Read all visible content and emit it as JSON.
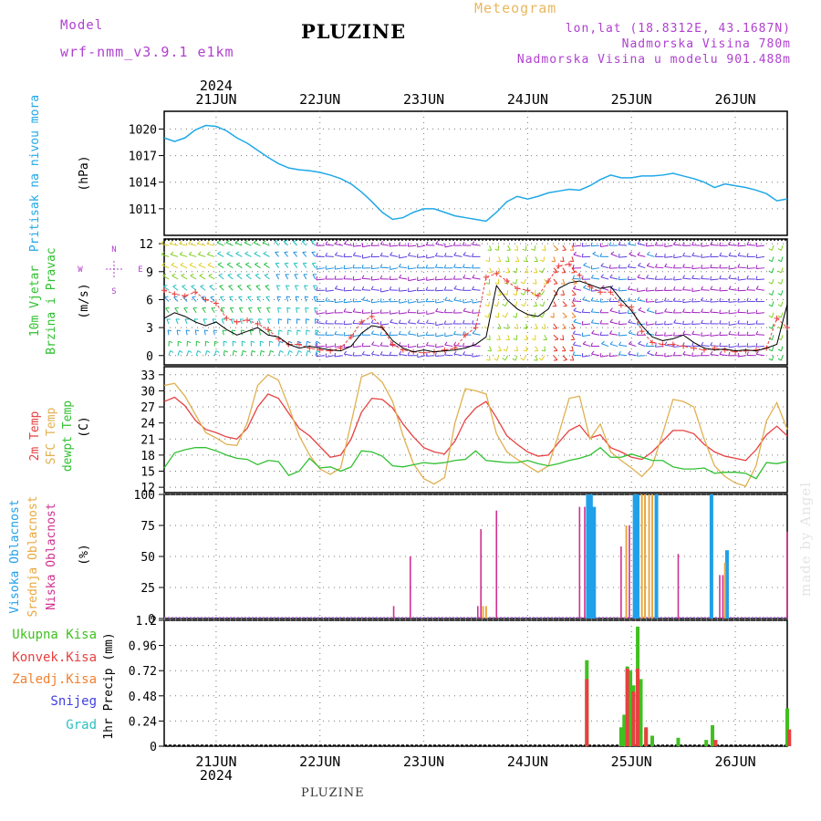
{
  "header": {
    "model_label": "Model",
    "model_name": "wrf-nmm_v3.9.1 e1km",
    "title": "PLUZINE",
    "meteogram_label": "Meteogram",
    "lonlat": "lon,lat (18.8312E, 43.1687N)",
    "altitude": "Nadmorska Visina 780m",
    "model_altitude": "Nadmorska Visina u modelu 901.488m",
    "footer": "PLUZINE",
    "credit": "made by Angel"
  },
  "colors": {
    "pressure": "#20a8e8",
    "temp": "#e84040",
    "sfc_temp": "#e0b050",
    "dewpt": "#30c030",
    "high_cloud": "#20a0e8",
    "mid_cloud": "#e8a840",
    "low_cloud": "#d03090",
    "total_precip": "#40c020",
    "conv_precip": "#e84040",
    "frozen_precip": "#f08030",
    "snow": "#4040e0",
    "hail": "#30c0c0"
  },
  "chart_data": [
    {
      "type": "line",
      "panel": "pressure",
      "ylabel_left": "Pritisak na nivou mora",
      "ylabel_unit": "(hPa)",
      "x_labels": [
        "21JUN",
        "22JUN",
        "23JUN",
        "24JUN",
        "25JUN",
        "26JUN"
      ],
      "year_label": "2024",
      "yticks": [
        "1011",
        "1014",
        "1017",
        "1020"
      ],
      "ylim": [
        1008,
        1022
      ],
      "x": [
        20.5,
        20.6,
        20.7,
        20.8,
        20.9,
        21.0,
        21.1,
        21.2,
        21.3,
        21.4,
        21.5,
        21.6,
        21.7,
        21.8,
        21.9,
        22.0,
        22.1,
        22.2,
        22.3,
        22.4,
        22.5,
        22.6,
        22.7,
        22.8,
        22.9,
        23.0,
        23.1,
        23.2,
        23.3,
        23.4,
        23.5,
        23.6,
        23.7,
        23.8,
        23.9,
        24.0,
        24.1,
        24.2,
        24.3,
        24.4,
        24.5,
        24.6,
        24.7,
        24.8,
        24.9,
        25.0,
        25.1,
        25.2,
        25.3,
        25.4,
        25.5,
        25.6,
        25.7,
        25.8,
        25.9,
        26.0,
        26.1,
        26.2,
        26.3,
        26.4,
        26.5
      ],
      "values": [
        1019.0,
        1018.6,
        1019.0,
        1019.9,
        1020.4,
        1020.3,
        1019.8,
        1019.0,
        1018.4,
        1017.6,
        1016.8,
        1016.1,
        1015.6,
        1015.4,
        1015.3,
        1015.1,
        1014.8,
        1014.4,
        1013.8,
        1012.9,
        1011.8,
        1010.6,
        1009.8,
        1010.0,
        1010.6,
        1011.0,
        1011.0,
        1010.6,
        1010.2,
        1010.0,
        1009.8,
        1009.6,
        1010.6,
        1011.8,
        1012.4,
        1012.1,
        1012.4,
        1012.8,
        1013.0,
        1013.2,
        1013.1,
        1013.6,
        1014.3,
        1014.8,
        1014.5,
        1014.5,
        1014.7,
        1014.7,
        1014.8,
        1015.0,
        1014.7,
        1014.4,
        1014.0,
        1013.4,
        1013.8,
        1013.6,
        1013.4,
        1013.1,
        1012.7,
        1011.9,
        1012.1
      ]
    },
    {
      "type": "line",
      "panel": "wind",
      "ylabel_left": [
        "10m Vjetar",
        "Brzina i Pravac"
      ],
      "ylabel_unit": "(m/s)",
      "compass": [
        "N",
        "E",
        "S",
        "W"
      ],
      "yticks": [
        "0",
        "3",
        "6",
        "9",
        "12"
      ],
      "ylim": [
        -1,
        12.5
      ],
      "x": [
        20.5,
        20.6,
        20.7,
        20.8,
        20.9,
        21.0,
        21.1,
        21.2,
        21.3,
        21.4,
        21.5,
        21.6,
        21.7,
        21.8,
        21.9,
        22.0,
        22.1,
        22.2,
        22.3,
        22.4,
        22.5,
        22.6,
        22.7,
        22.8,
        22.9,
        23.0,
        23.1,
        23.2,
        23.3,
        23.4,
        23.5,
        23.6,
        23.7,
        23.8,
        23.9,
        24.0,
        24.1,
        24.2,
        24.3,
        24.4,
        24.5,
        24.6,
        24.7,
        24.8,
        24.9,
        25.0,
        25.1,
        25.2,
        25.3,
        25.4,
        25.5,
        25.6,
        25.7,
        25.8,
        25.9,
        26.0,
        26.1,
        26.2,
        26.3,
        26.4,
        26.5
      ],
      "speed": [
        4.0,
        4.6,
        4.2,
        3.6,
        3.2,
        3.6,
        2.8,
        2.2,
        2.6,
        3.0,
        2.2,
        2.0,
        1.2,
        0.8,
        1.0,
        0.8,
        0.6,
        0.5,
        1.0,
        2.4,
        3.2,
        3.0,
        1.6,
        0.8,
        0.4,
        0.6,
        0.4,
        0.5,
        0.6,
        0.8,
        1.2,
        2.0,
        7.5,
        6.0,
        5.0,
        4.4,
        4.2,
        5.0,
        7.2,
        7.8,
        8.0,
        7.6,
        7.2,
        7.4,
        6.0,
        4.8,
        3.2,
        2.0,
        1.6,
        1.8,
        2.2,
        1.4,
        0.8,
        0.6,
        0.7,
        0.5,
        0.6,
        0.5,
        0.8,
        1.2,
        5.5
      ],
      "gust": [
        7.0,
        6.6,
        6.4,
        6.8,
        6.0,
        5.6,
        4.0,
        3.6,
        3.8,
        3.4,
        2.8,
        1.8,
        1.2,
        1.2,
        0.8,
        0.6,
        0.5,
        0.8,
        2.0,
        3.6,
        4.2,
        3.0,
        1.2,
        0.6,
        0.4,
        0.3,
        0.4,
        0.6,
        0.8,
        2.2,
        3.0,
        8.4,
        8.8,
        8.0,
        7.2,
        7.0,
        6.4,
        8.0,
        9.6,
        9.8,
        8.6,
        7.4,
        6.8,
        6.8,
        5.4,
        5.2,
        2.6,
        1.4,
        1.2,
        1.2,
        1.0,
        0.8,
        0.6,
        0.8,
        0.6,
        0.4,
        0.5,
        0.6,
        0.8,
        4.0,
        3.0
      ]
    },
    {
      "type": "line",
      "panel": "temperature",
      "ylabel_left": [
        "2m Temp",
        "SFC Temp",
        "dewpt Temp"
      ],
      "ylabel_unit": "(C)",
      "yticks": [
        "12",
        "15",
        "18",
        "21",
        "24",
        "27",
        "30",
        "33"
      ],
      "ylim": [
        11,
        34.5
      ],
      "x": [
        20.5,
        20.6,
        20.7,
        20.8,
        20.9,
        21.0,
        21.1,
        21.2,
        21.3,
        21.4,
        21.5,
        21.6,
        21.7,
        21.8,
        21.9,
        22.0,
        22.1,
        22.2,
        22.3,
        22.4,
        22.5,
        22.6,
        22.7,
        22.8,
        22.9,
        23.0,
        23.1,
        23.2,
        23.3,
        23.4,
        23.5,
        23.6,
        23.7,
        23.8,
        23.9,
        24.0,
        24.1,
        24.2,
        24.3,
        24.4,
        24.5,
        24.6,
        24.7,
        24.8,
        24.9,
        25.0,
        25.1,
        25.2,
        25.3,
        25.4,
        25.5,
        25.6,
        25.7,
        25.8,
        25.9,
        26.0,
        26.1,
        26.2,
        26.3,
        26.4,
        26.5
      ],
      "series": [
        {
          "name": "2m Temp",
          "values": [
            28.0,
            28.8,
            27.2,
            24.5,
            22.8,
            22.2,
            21.4,
            21.0,
            23.0,
            27.0,
            29.4,
            28.6,
            25.8,
            23.0,
            21.6,
            19.6,
            17.6,
            18.0,
            21.0,
            26.0,
            28.6,
            28.4,
            26.8,
            23.8,
            21.4,
            19.4,
            18.6,
            18.2,
            20.6,
            24.6,
            26.8,
            28.0,
            25.0,
            21.6,
            20.0,
            18.6,
            17.8,
            18.0,
            20.4,
            22.6,
            23.6,
            21.2,
            21.8,
            19.4,
            18.6,
            17.6,
            17.2,
            18.6,
            20.6,
            22.6,
            22.6,
            22.0,
            20.0,
            18.6,
            17.8,
            17.4,
            17.0,
            19.0,
            21.8,
            23.4,
            21.6
          ]
        },
        {
          "name": "SFC Temp",
          "values": [
            31.0,
            31.4,
            29.0,
            25.6,
            22.2,
            21.2,
            20.0,
            19.8,
            24.0,
            31.0,
            33.0,
            32.0,
            27.0,
            21.6,
            18.0,
            15.4,
            14.4,
            15.6,
            24.0,
            32.6,
            33.4,
            31.6,
            28.0,
            21.6,
            16.4,
            13.6,
            12.6,
            13.8,
            24.0,
            30.4,
            30.0,
            29.4,
            22.0,
            18.6,
            17.2,
            16.0,
            14.8,
            16.0,
            22.0,
            28.6,
            29.0,
            21.0,
            23.8,
            18.6,
            17.0,
            15.6,
            14.0,
            16.0,
            22.0,
            28.4,
            28.0,
            27.0,
            21.0,
            16.0,
            14.0,
            12.8,
            12.2,
            16.0,
            24.4,
            27.8,
            22.8
          ]
        },
        {
          "name": "dewpt Temp",
          "values": [
            15.6,
            18.4,
            19.0,
            19.4,
            19.4,
            18.8,
            18.0,
            17.4,
            17.2,
            16.2,
            17.0,
            16.8,
            14.2,
            15.0,
            17.4,
            15.6,
            15.8,
            15.0,
            15.8,
            18.8,
            18.6,
            17.8,
            16.0,
            15.8,
            16.2,
            16.6,
            16.4,
            16.6,
            17.0,
            17.2,
            18.8,
            17.0,
            16.8,
            16.6,
            16.6,
            17.0,
            16.4,
            16.0,
            16.4,
            17.0,
            17.4,
            18.0,
            19.4,
            17.6,
            17.6,
            18.2,
            17.6,
            17.0,
            17.0,
            15.8,
            15.4,
            15.4,
            15.6,
            14.6,
            14.8,
            14.8,
            14.6,
            13.6,
            16.6,
            16.4,
            16.8
          ]
        }
      ]
    },
    {
      "type": "bar",
      "panel": "clouds",
      "ylabel_left": [
        "Visoka Oblacnost",
        "Srednja Oblacnost",
        "Niska Oblacnost"
      ],
      "ylabel_unit": "(%)",
      "yticks": [
        "0",
        "25",
        "50",
        "75",
        "100"
      ],
      "ylim": [
        0,
        100
      ],
      "series": [
        {
          "name": "Visoka Oblacnost",
          "x": [
            24.58,
            24.61,
            24.64,
            25.03,
            25.06,
            25.24,
            25.77,
            25.92
          ],
          "values": [
            100,
            100,
            90,
            100,
            100,
            100,
            100,
            55
          ]
        },
        {
          "name": "Srednja Oblacnost",
          "x": [
            23.57,
            23.6,
            24.95,
            25.1,
            25.13,
            25.17,
            25.2,
            25.9
          ],
          "values": [
            10,
            10,
            75,
            100,
            100,
            100,
            100,
            45
          ]
        },
        {
          "name": "Niska Oblacnost",
          "x": [
            22.71,
            22.87,
            23.52,
            23.55,
            23.7,
            24.5,
            24.55,
            24.9,
            24.98,
            25.45,
            25.85,
            25.88,
            26.5
          ],
          "values": [
            10,
            50,
            10,
            72,
            87,
            90,
            90,
            58,
            75,
            52,
            35,
            35,
            70
          ]
        }
      ]
    },
    {
      "type": "bar",
      "panel": "precip",
      "ylabel_left": [
        "Ukupna Kisa",
        "Konvek.Kisa",
        "Zaledj.Kisa",
        "Snijeg",
        "Grad"
      ],
      "ylabel_unit": "1hr Precip (mm)",
      "yticks": [
        "0",
        "0.24",
        "0.48",
        "0.72",
        "0.96",
        "1.2"
      ],
      "ylim": [
        0,
        1.2
      ],
      "series": [
        {
          "name": "Ukupna Kisa",
          "x": [
            24.57,
            24.9,
            24.93,
            24.96,
            24.99,
            25.02,
            25.06,
            25.09,
            25.14,
            25.2,
            25.45,
            25.72,
            25.78,
            26.5
          ],
          "values": [
            0.82,
            0.18,
            0.3,
            0.76,
            0.72,
            0.58,
            1.14,
            0.64,
            0.16,
            0.1,
            0.08,
            0.06,
            0.2,
            0.36
          ]
        },
        {
          "name": "Konvek.Kisa",
          "x": [
            24.57,
            24.96,
            25.02,
            25.06,
            25.14,
            25.81,
            26.52
          ],
          "values": [
            0.64,
            0.74,
            0.52,
            0.74,
            0.18,
            0.06,
            0.16
          ]
        }
      ]
    }
  ]
}
